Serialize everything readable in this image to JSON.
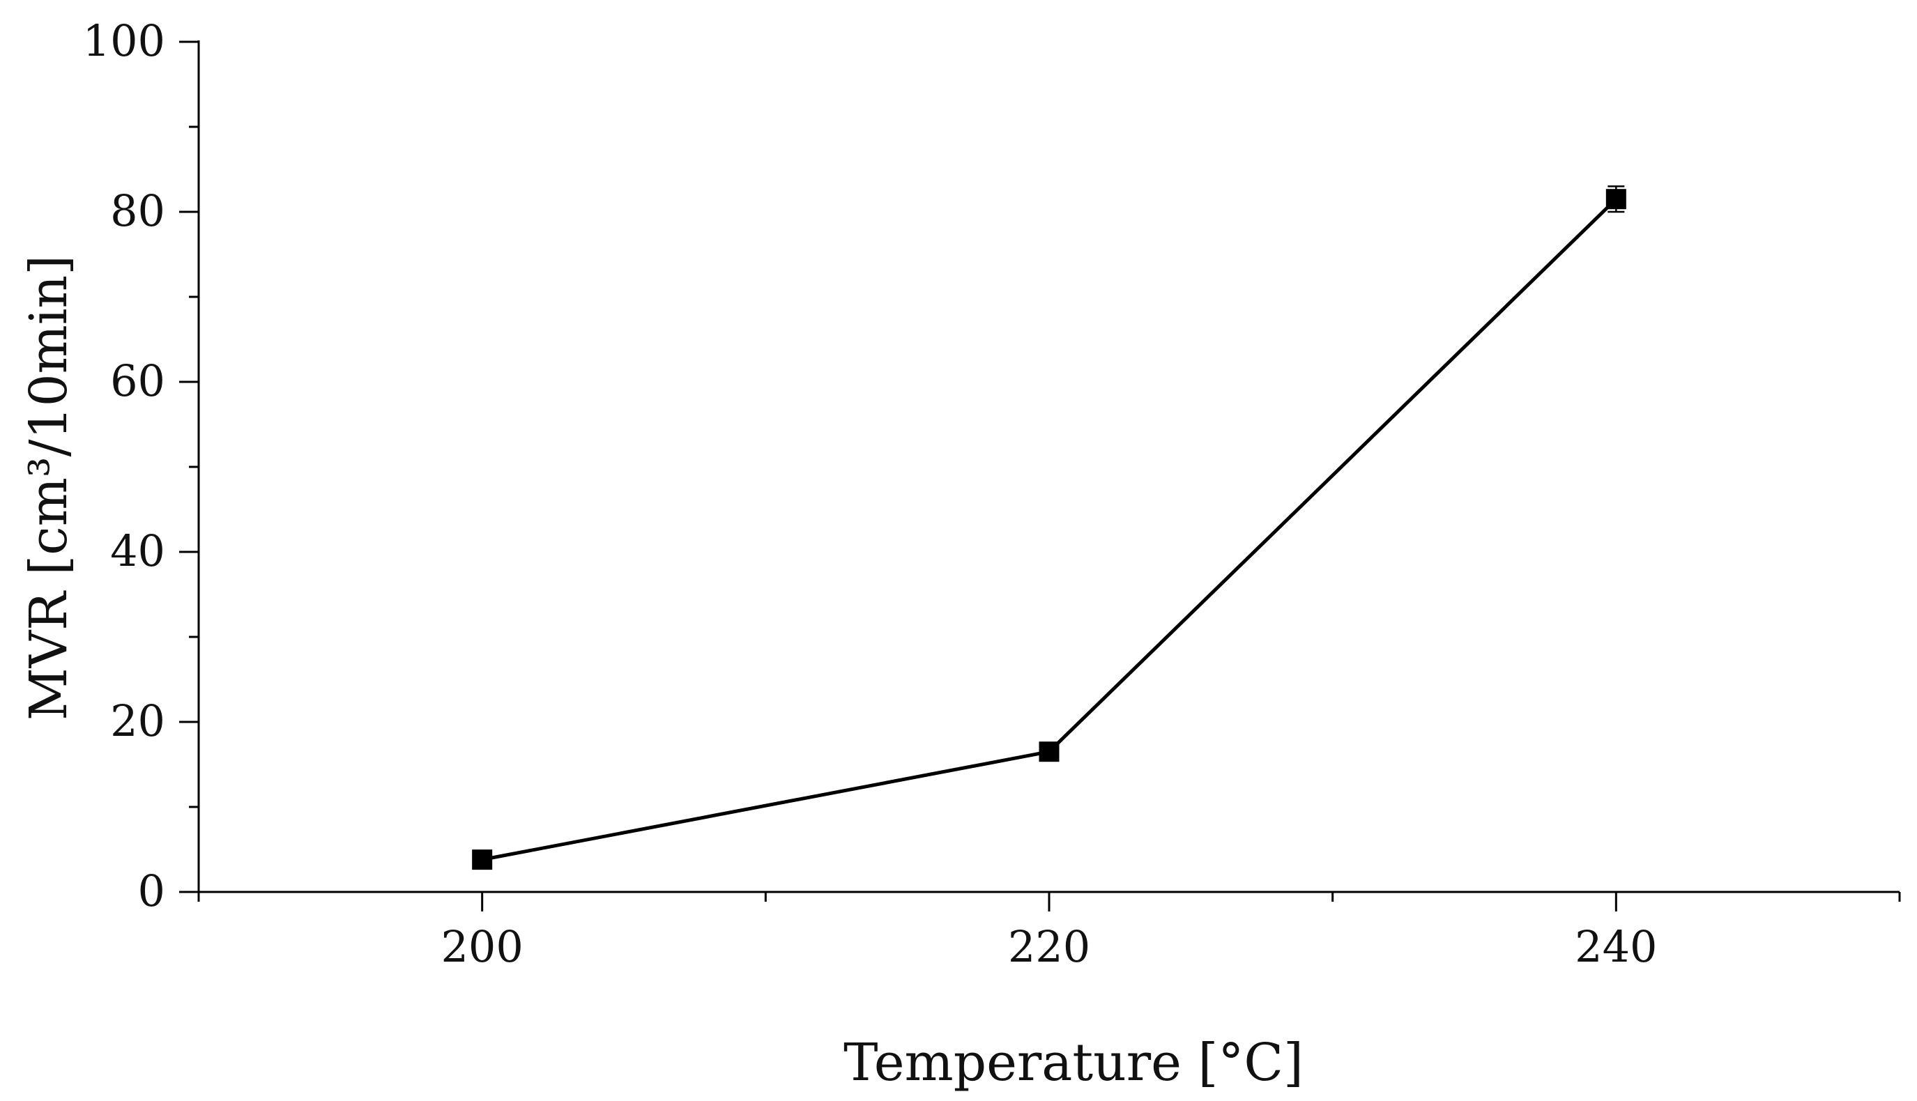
{
  "chart_data": {
    "type": "line",
    "title": "",
    "xlabel": "Temperature [°C]",
    "ylabel": "MVR [cm³/10min]",
    "xlim": [
      190,
      250
    ],
    "ylim": [
      0,
      100
    ],
    "x_ticks": [
      200,
      220,
      240
    ],
    "x_minor_ticks": [
      190,
      210,
      230,
      250
    ],
    "y_ticks": [
      0,
      20,
      40,
      60,
      80,
      100
    ],
    "y_minor_ticks": [
      10,
      30,
      50,
      70,
      90
    ],
    "grid": false,
    "legend": "none",
    "series": [
      {
        "marker": "square",
        "color": "#000000",
        "x": [
          200,
          220,
          240
        ],
        "y": [
          3.8,
          16.5,
          81.5
        ],
        "error": [
          0.5,
          0.6,
          1.5
        ]
      }
    ]
  }
}
